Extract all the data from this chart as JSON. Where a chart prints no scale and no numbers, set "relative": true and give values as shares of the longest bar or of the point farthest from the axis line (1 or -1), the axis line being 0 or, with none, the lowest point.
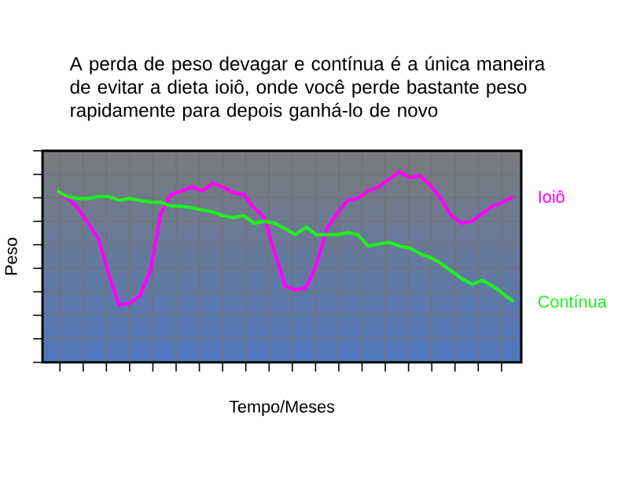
{
  "chart_data": {
    "type": "line",
    "title": "A perda de peso devagar e contínua é a única maneira de evitar a dieta ioiô, onde você perde bastante peso rapidamente para depois ganhá-lo de novo",
    "xlabel": "Tempo/Meses",
    "ylabel": "Peso",
    "relative": true,
    "grid": true,
    "legend": false,
    "marker": "none",
    "line_style": "solid",
    "categories": [
      null,
      null,
      null,
      null,
      null,
      null,
      null,
      null,
      null,
      null,
      null,
      null,
      null,
      null,
      null,
      null,
      null,
      null,
      null,
      null,
      null,
      null,
      null,
      null,
      null,
      null,
      null,
      null,
      null,
      null,
      null,
      null,
      null,
      null,
      null,
      null,
      null,
      null,
      null,
      null,
      null,
      null,
      null,
      null,
      null
    ],
    "series": [
      {
        "name": "Ioiô",
        "color": "#ff00ff",
        "values": [
          0.9,
          0.86,
          0.81,
          0.73,
          0.65,
          0.46,
          0.3,
          0.31,
          0.35,
          0.48,
          0.78,
          0.88,
          0.9,
          0.92,
          0.9,
          0.94,
          0.92,
          0.89,
          0.88,
          0.81,
          0.76,
          0.57,
          0.4,
          0.38,
          0.39,
          0.51,
          0.7,
          0.78,
          0.85,
          0.86,
          0.9,
          0.92,
          0.96,
          1.0,
          0.97,
          0.98,
          0.93,
          0.86,
          0.77,
          0.73,
          0.74,
          0.78,
          0.82,
          0.84,
          0.87
        ]
      },
      {
        "name": "Contínua",
        "color": "#22ee22",
        "values": [
          0.9,
          0.87,
          0.86,
          0.86,
          0.87,
          0.87,
          0.85,
          0.86,
          0.85,
          0.84,
          0.84,
          0.82,
          0.82,
          0.81,
          0.8,
          0.79,
          0.77,
          0.76,
          0.77,
          0.73,
          0.74,
          0.73,
          0.7,
          0.67,
          0.71,
          0.67,
          0.67,
          0.67,
          0.68,
          0.67,
          0.61,
          0.62,
          0.63,
          0.61,
          0.6,
          0.57,
          0.55,
          0.52,
          0.48,
          0.44,
          0.41,
          0.43,
          0.4,
          0.36,
          0.32
        ]
      }
    ]
  }
}
